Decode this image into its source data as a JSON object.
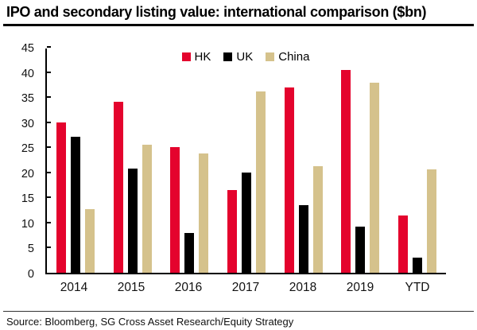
{
  "header": {
    "title": "IPO and secondary listing value: international comparison ($bn)"
  },
  "footer": {
    "source": "Source: Bloomberg, SG Cross Asset Research/Equity Strategy"
  },
  "colors": {
    "hk_red": "#e4032d",
    "uk_black": "#000000",
    "china_tan": "#d5c28c"
  },
  "chart_data": {
    "type": "bar",
    "title": "IPO and secondary listing value: international comparison ($bn)",
    "categories": [
      "2014",
      "2015",
      "2016",
      "2017",
      "2018",
      "2019",
      "YTD"
    ],
    "series": [
      {
        "name": "HK",
        "color": "#e4032d",
        "values": [
          30.0,
          34.0,
          25.0,
          16.5,
          36.9,
          40.4,
          11.4
        ]
      },
      {
        "name": "UK",
        "color": "#000000",
        "values": [
          27.1,
          20.7,
          8.0,
          19.9,
          13.4,
          9.2,
          3.0
        ]
      },
      {
        "name": "China",
        "color": "#d5c28c",
        "values": [
          12.6,
          25.5,
          23.7,
          36.1,
          21.2,
          37.9,
          20.6
        ]
      }
    ],
    "xlabel": "",
    "ylabel": "",
    "ylim": [
      0,
      45
    ],
    "yticks": [
      0,
      5,
      10,
      15,
      20,
      25,
      30,
      35,
      40,
      45
    ],
    "grid": false,
    "legend_position": "top-center"
  }
}
